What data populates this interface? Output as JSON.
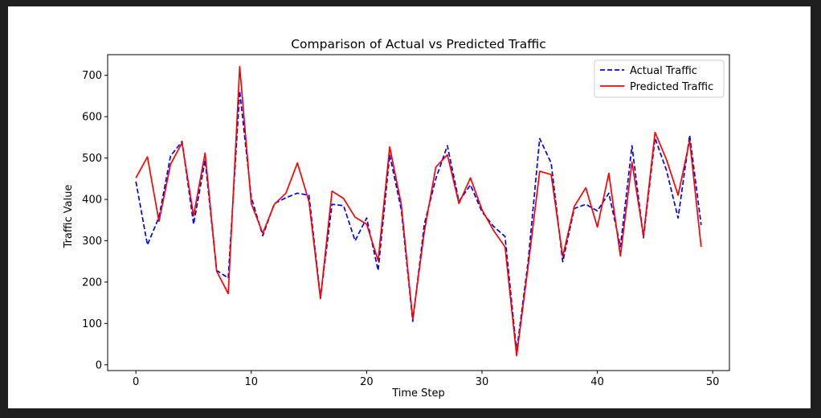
{
  "chart_data": {
    "type": "line",
    "title": "Comparison of Actual vs Predicted Traffic",
    "xlabel": "Time Step",
    "ylabel": "Traffic Value",
    "xlim": [
      -2.45,
      51.45
    ],
    "ylim": [
      -14,
      750
    ],
    "xticks": [
      0,
      10,
      20,
      30,
      40,
      50
    ],
    "yticks": [
      0,
      100,
      200,
      300,
      400,
      500,
      600,
      700
    ],
    "grid": false,
    "legend": "top-right",
    "x": [
      0,
      1,
      2,
      3,
      4,
      5,
      6,
      7,
      8,
      9,
      10,
      11,
      12,
      13,
      14,
      15,
      16,
      17,
      18,
      19,
      20,
      21,
      22,
      23,
      24,
      25,
      26,
      27,
      28,
      29,
      30,
      31,
      32,
      33,
      34,
      35,
      36,
      37,
      38,
      39,
      40,
      41,
      42,
      43,
      44,
      45,
      46,
      47,
      48,
      49
    ],
    "series": [
      {
        "name": "Actual Traffic",
        "color": "#0000ff",
        "style": "dashed",
        "values": [
          443,
          290,
          357,
          505,
          540,
          340,
          495,
          228,
          210,
          662,
          405,
          312,
          390,
          404,
          415,
          410,
          163,
          388,
          385,
          300,
          355,
          228,
          508,
          375,
          105,
          340,
          450,
          530,
          395,
          435,
          370,
          335,
          310,
          32,
          250,
          547,
          488,
          249,
          378,
          388,
          372,
          415,
          286,
          530,
          307,
          548,
          470,
          355,
          555,
          338
        ]
      },
      {
        "name": "Predicted Traffic",
        "color": "#ff0000",
        "style": "solid",
        "values": [
          452,
          503,
          347,
          485,
          537,
          360,
          512,
          226,
          172,
          721,
          390,
          318,
          388,
          415,
          488,
          395,
          160,
          420,
          402,
          357,
          340,
          252,
          527,
          388,
          110,
          322,
          478,
          508,
          390,
          452,
          375,
          325,
          285,
          22,
          238,
          468,
          460,
          262,
          383,
          428,
          333,
          463,
          263,
          490,
          312,
          562,
          496,
          410,
          543,
          285
        ]
      }
    ]
  }
}
